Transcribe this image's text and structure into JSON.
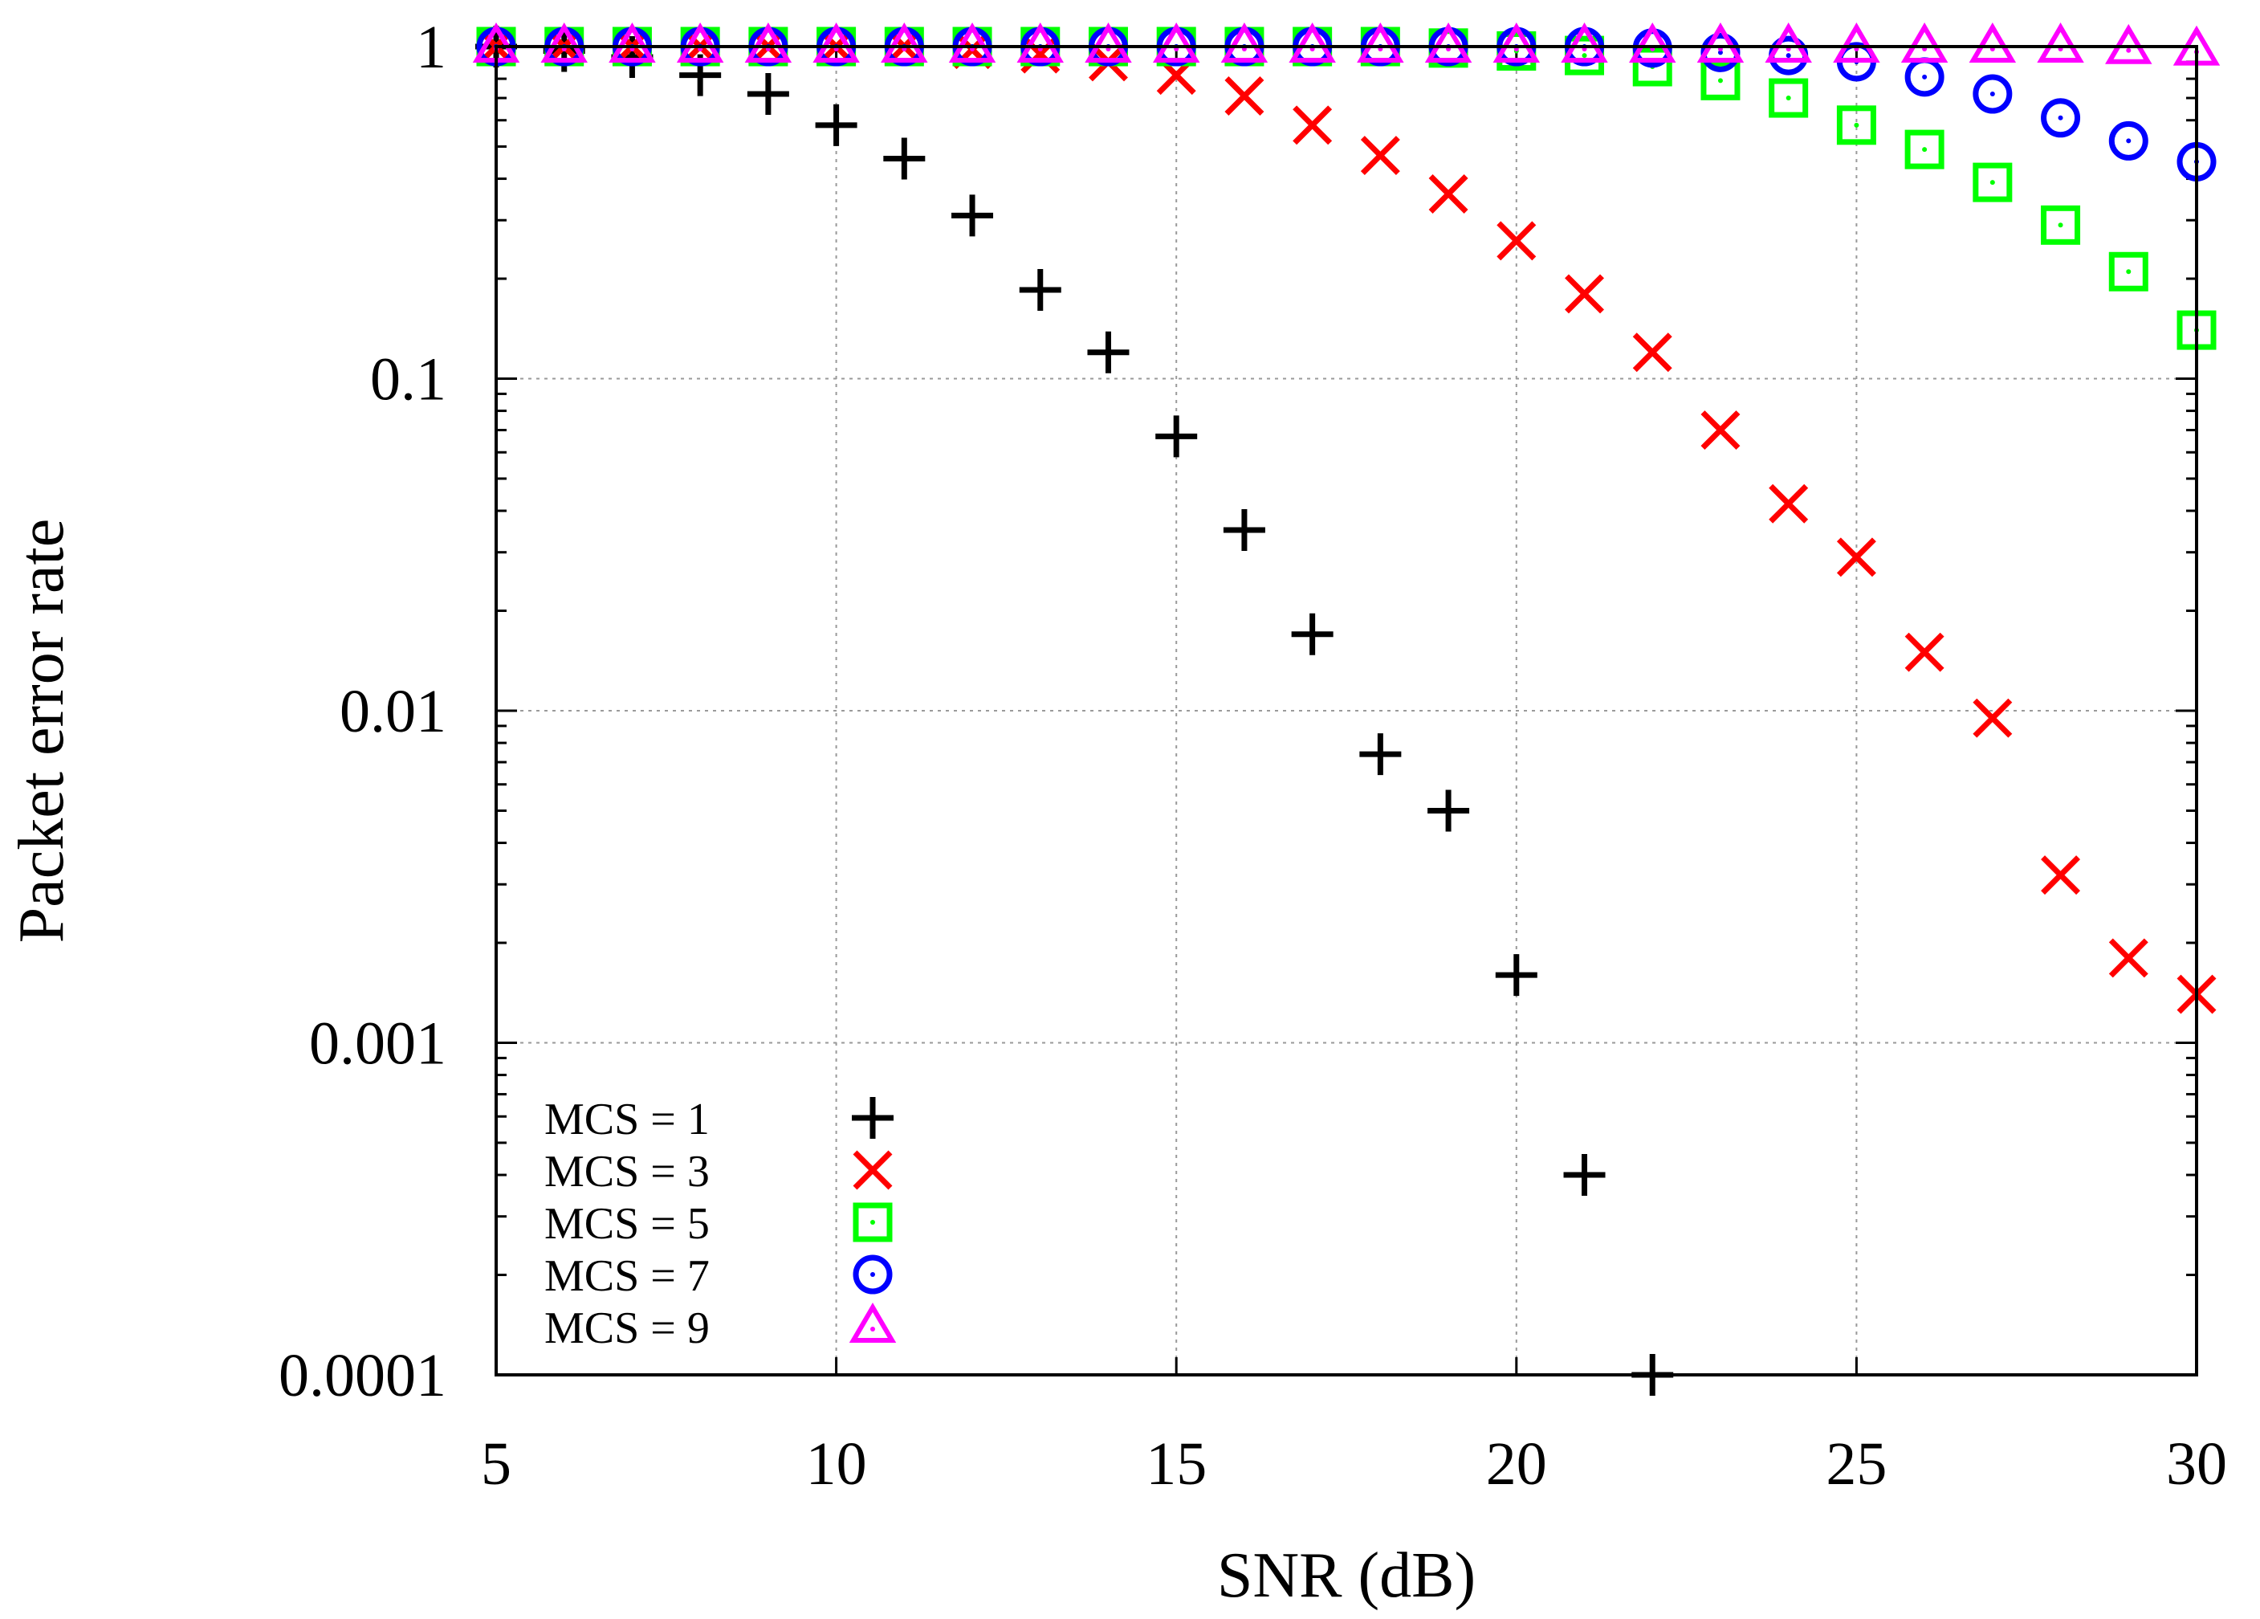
{
  "chart_data": {
    "type": "scatter",
    "title": "",
    "xlabel": "SNR (dB)",
    "ylabel": "Packet error rate",
    "xlim": [
      5,
      30
    ],
    "ylim": [
      0.0001,
      1
    ],
    "yscale": "log",
    "grid": true,
    "legend_position": "bottom-left",
    "x_ticks": [
      5,
      10,
      15,
      20,
      25,
      30
    ],
    "x_tick_labels": [
      "5",
      "10",
      "15",
      "20",
      "25",
      "30"
    ],
    "y_ticks": [
      1,
      0.1,
      0.01,
      0.001,
      0.0001
    ],
    "y_tick_labels": [
      "1",
      "0.1",
      "0.01",
      "0.001",
      "0.0001"
    ],
    "series": [
      {
        "name": "MCS = 1",
        "marker": "plus",
        "color": "#000000",
        "x": [
          5,
          6,
          7,
          8,
          9,
          10,
          11,
          12,
          13,
          14,
          15,
          16,
          17,
          18,
          19,
          20,
          21,
          22
        ],
        "values": [
          1,
          0.97,
          0.93,
          0.82,
          0.72,
          0.58,
          0.46,
          0.31,
          0.185,
          0.12,
          0.067,
          0.035,
          0.017,
          0.0074,
          0.005,
          0.0016,
          0.0004,
          0.0001
        ]
      },
      {
        "name": "MCS = 3",
        "marker": "cross",
        "color": "#ff0000",
        "x": [
          5,
          6,
          7,
          8,
          9,
          10,
          11,
          12,
          13,
          14,
          15,
          16,
          17,
          18,
          19,
          20,
          21,
          22,
          23,
          24,
          25,
          26,
          27,
          28,
          29,
          30
        ],
        "values": [
          1,
          1,
          1,
          1,
          1,
          1,
          1,
          0.98,
          0.95,
          0.9,
          0.82,
          0.71,
          0.58,
          0.47,
          0.36,
          0.26,
          0.18,
          0.12,
          0.07,
          0.042,
          0.029,
          0.015,
          0.0095,
          0.0032,
          0.0018,
          0.0014
        ]
      },
      {
        "name": "MCS = 5",
        "marker": "square",
        "color": "#00ff00",
        "x": [
          5,
          6,
          7,
          8,
          9,
          10,
          11,
          12,
          13,
          14,
          15,
          16,
          17,
          18,
          19,
          20,
          21,
          22,
          23,
          24,
          25,
          26,
          27,
          28,
          29,
          30
        ],
        "values": [
          1,
          1,
          1,
          1,
          1,
          1,
          1,
          1,
          1,
          1,
          1,
          1,
          1,
          1,
          0.99,
          0.97,
          0.94,
          0.87,
          0.79,
          0.7,
          0.58,
          0.49,
          0.39,
          0.29,
          0.21,
          0.14
        ]
      },
      {
        "name": "MCS = 7",
        "marker": "circle",
        "color": "#0000ff",
        "x": [
          5,
          6,
          7,
          8,
          9,
          10,
          11,
          12,
          13,
          14,
          15,
          16,
          17,
          18,
          19,
          20,
          21,
          22,
          23,
          24,
          25,
          26,
          27,
          28,
          29,
          30
        ],
        "values": [
          1,
          1,
          1,
          1,
          1,
          1,
          1,
          1,
          1,
          1,
          1,
          1,
          1,
          1,
          1,
          1,
          1,
          0.99,
          0.96,
          0.94,
          0.9,
          0.81,
          0.72,
          0.61,
          0.52,
          0.45
        ]
      },
      {
        "name": "MCS = 9",
        "marker": "triangle",
        "color": "#ff00ff",
        "x": [
          5,
          6,
          7,
          8,
          9,
          10,
          11,
          12,
          13,
          14,
          15,
          16,
          17,
          18,
          19,
          20,
          21,
          22,
          23,
          24,
          25,
          26,
          27,
          28,
          29,
          30
        ],
        "values": [
          1,
          1,
          1,
          1,
          1,
          1,
          1,
          1,
          1,
          1,
          1,
          1,
          1,
          1,
          1,
          1,
          1,
          1,
          1,
          1,
          1,
          1,
          1,
          1,
          0.99,
          0.98
        ]
      }
    ]
  }
}
